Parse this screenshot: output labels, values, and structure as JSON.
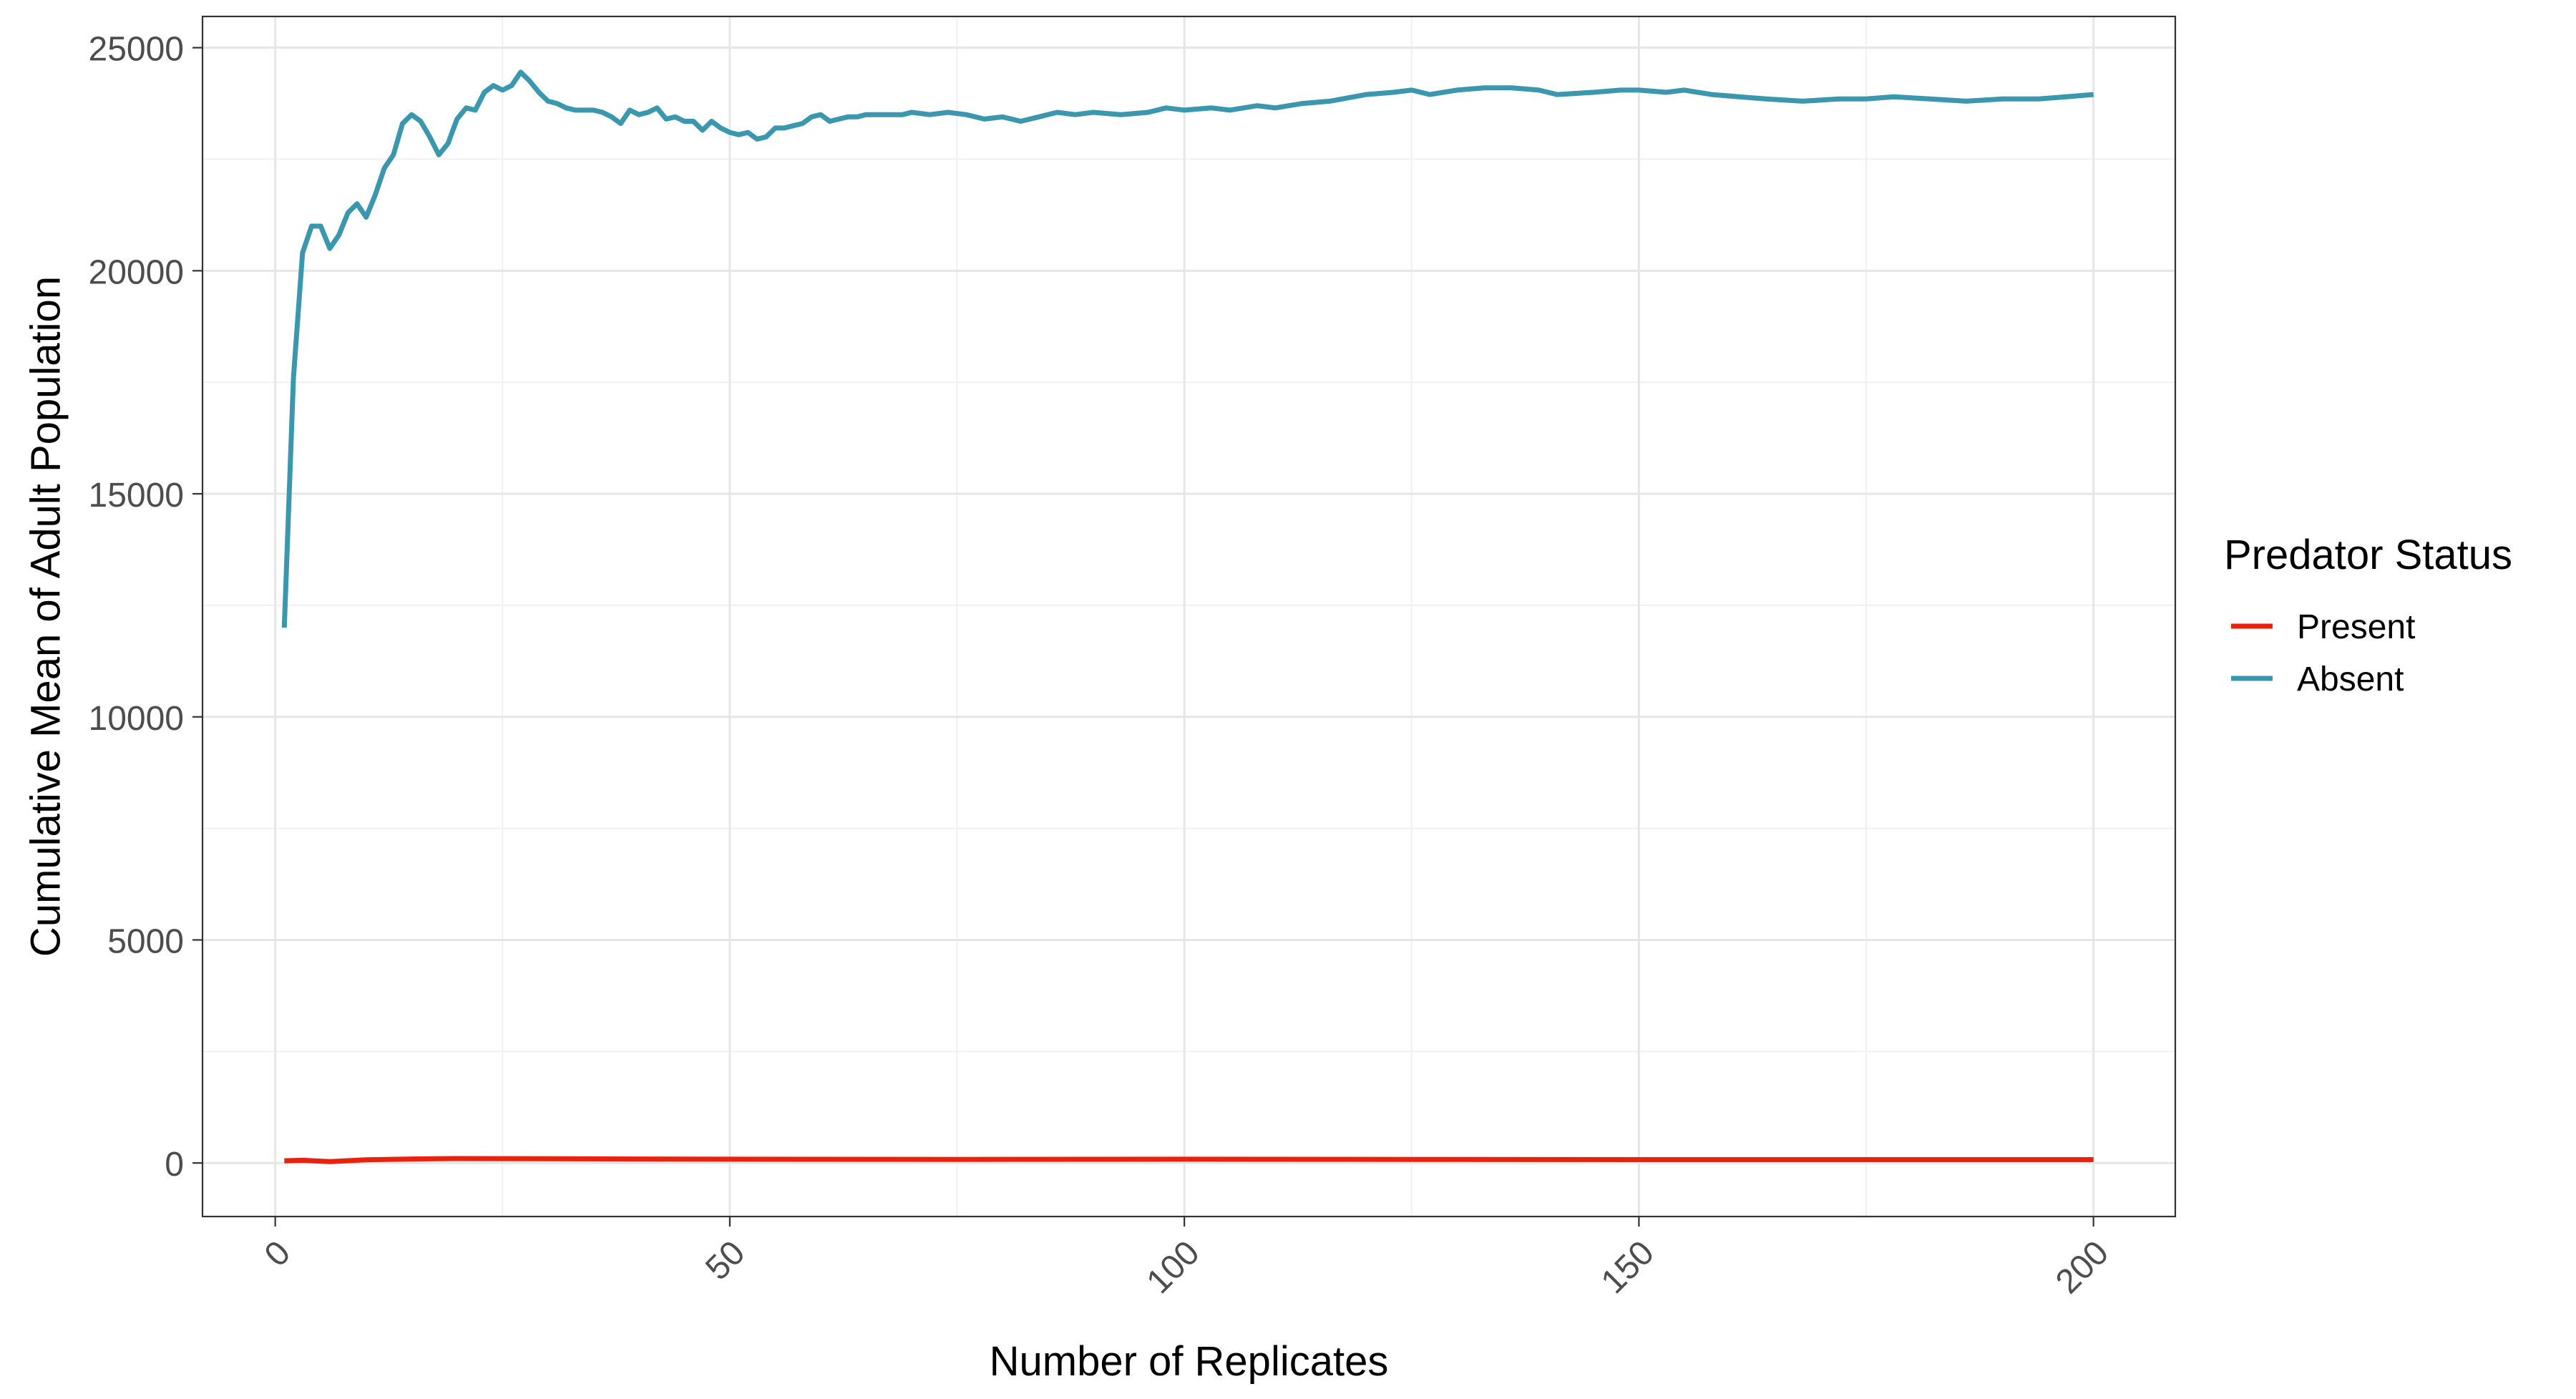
{
  "chart_data": {
    "type": "line",
    "title": "",
    "xlabel": "Number of Replicates",
    "ylabel": "Cumulative Mean of Adult Population",
    "xlim": [
      -8,
      209
    ],
    "ylim": [
      -1200,
      25700
    ],
    "xticks": [
      0,
      50,
      100,
      150,
      200
    ],
    "yticks": [
      0,
      5000,
      10000,
      15000,
      20000,
      25000
    ],
    "grid": true,
    "legend": {
      "title": "Predator Status",
      "position": "right"
    },
    "series": [
      {
        "name": "Present",
        "color": "#e8220c",
        "points": [
          [
            1,
            50
          ],
          [
            3,
            60
          ],
          [
            6,
            30
          ],
          [
            10,
            70
          ],
          [
            15,
            90
          ],
          [
            20,
            100
          ],
          [
            30,
            95
          ],
          [
            40,
            90
          ],
          [
            50,
            85
          ],
          [
            75,
            80
          ],
          [
            100,
            85
          ],
          [
            125,
            80
          ],
          [
            150,
            75
          ],
          [
            175,
            75
          ],
          [
            200,
            75
          ]
        ]
      },
      {
        "name": "Absent",
        "color": "#3a97ae",
        "points": [
          [
            1,
            12000
          ],
          [
            2,
            17600
          ],
          [
            3,
            20400
          ],
          [
            4,
            21000
          ],
          [
            5,
            21000
          ],
          [
            6,
            20500
          ],
          [
            7,
            20800
          ],
          [
            8,
            21300
          ],
          [
            9,
            21500
          ],
          [
            10,
            21200
          ],
          [
            11,
            21700
          ],
          [
            12,
            22300
          ],
          [
            13,
            22600
          ],
          [
            14,
            23300
          ],
          [
            15,
            23500
          ],
          [
            16,
            23350
          ],
          [
            17,
            23000
          ],
          [
            18,
            22600
          ],
          [
            19,
            22850
          ],
          [
            20,
            23400
          ],
          [
            21,
            23650
          ],
          [
            22,
            23600
          ],
          [
            23,
            24000
          ],
          [
            24,
            24150
          ],
          [
            25,
            24050
          ],
          [
            26,
            24150
          ],
          [
            27,
            24450
          ],
          [
            28,
            24250
          ],
          [
            29,
            24000
          ],
          [
            30,
            23800
          ],
          [
            31,
            23750
          ],
          [
            32,
            23650
          ],
          [
            33,
            23600
          ],
          [
            34,
            23600
          ],
          [
            35,
            23600
          ],
          [
            36,
            23550
          ],
          [
            37,
            23450
          ],
          [
            38,
            23300
          ],
          [
            39,
            23600
          ],
          [
            40,
            23500
          ],
          [
            41,
            23550
          ],
          [
            42,
            23650
          ],
          [
            43,
            23400
          ],
          [
            44,
            23450
          ],
          [
            45,
            23350
          ],
          [
            46,
            23350
          ],
          [
            47,
            23150
          ],
          [
            48,
            23350
          ],
          [
            49,
            23200
          ],
          [
            50,
            23100
          ],
          [
            51,
            23050
          ],
          [
            52,
            23100
          ],
          [
            53,
            22950
          ],
          [
            54,
            23000
          ],
          [
            55,
            23200
          ],
          [
            56,
            23200
          ],
          [
            57,
            23250
          ],
          [
            58,
            23300
          ],
          [
            59,
            23450
          ],
          [
            60,
            23500
          ],
          [
            61,
            23350
          ],
          [
            62,
            23400
          ],
          [
            63,
            23450
          ],
          [
            64,
            23450
          ],
          [
            65,
            23500
          ],
          [
            66,
            23500
          ],
          [
            67,
            23500
          ],
          [
            68,
            23500
          ],
          [
            69,
            23500
          ],
          [
            70,
            23550
          ],
          [
            72,
            23500
          ],
          [
            74,
            23550
          ],
          [
            76,
            23500
          ],
          [
            78,
            23400
          ],
          [
            80,
            23450
          ],
          [
            82,
            23350
          ],
          [
            84,
            23450
          ],
          [
            86,
            23550
          ],
          [
            88,
            23500
          ],
          [
            90,
            23550
          ],
          [
            93,
            23500
          ],
          [
            96,
            23550
          ],
          [
            98,
            23650
          ],
          [
            100,
            23600
          ],
          [
            103,
            23650
          ],
          [
            105,
            23600
          ],
          [
            108,
            23700
          ],
          [
            110,
            23650
          ],
          [
            113,
            23750
          ],
          [
            116,
            23800
          ],
          [
            120,
            23950
          ],
          [
            123,
            24000
          ],
          [
            125,
            24050
          ],
          [
            127,
            23950
          ],
          [
            130,
            24050
          ],
          [
            133,
            24100
          ],
          [
            136,
            24100
          ],
          [
            139,
            24050
          ],
          [
            141,
            23950
          ],
          [
            145,
            24000
          ],
          [
            148,
            24050
          ],
          [
            150,
            24050
          ],
          [
            153,
            24000
          ],
          [
            155,
            24050
          ],
          [
            158,
            23950
          ],
          [
            161,
            23900
          ],
          [
            164,
            23850
          ],
          [
            168,
            23800
          ],
          [
            172,
            23850
          ],
          [
            175,
            23850
          ],
          [
            178,
            23900
          ],
          [
            182,
            23850
          ],
          [
            186,
            23800
          ],
          [
            190,
            23850
          ],
          [
            194,
            23850
          ],
          [
            197,
            23900
          ],
          [
            200,
            23950
          ]
        ]
      }
    ]
  }
}
